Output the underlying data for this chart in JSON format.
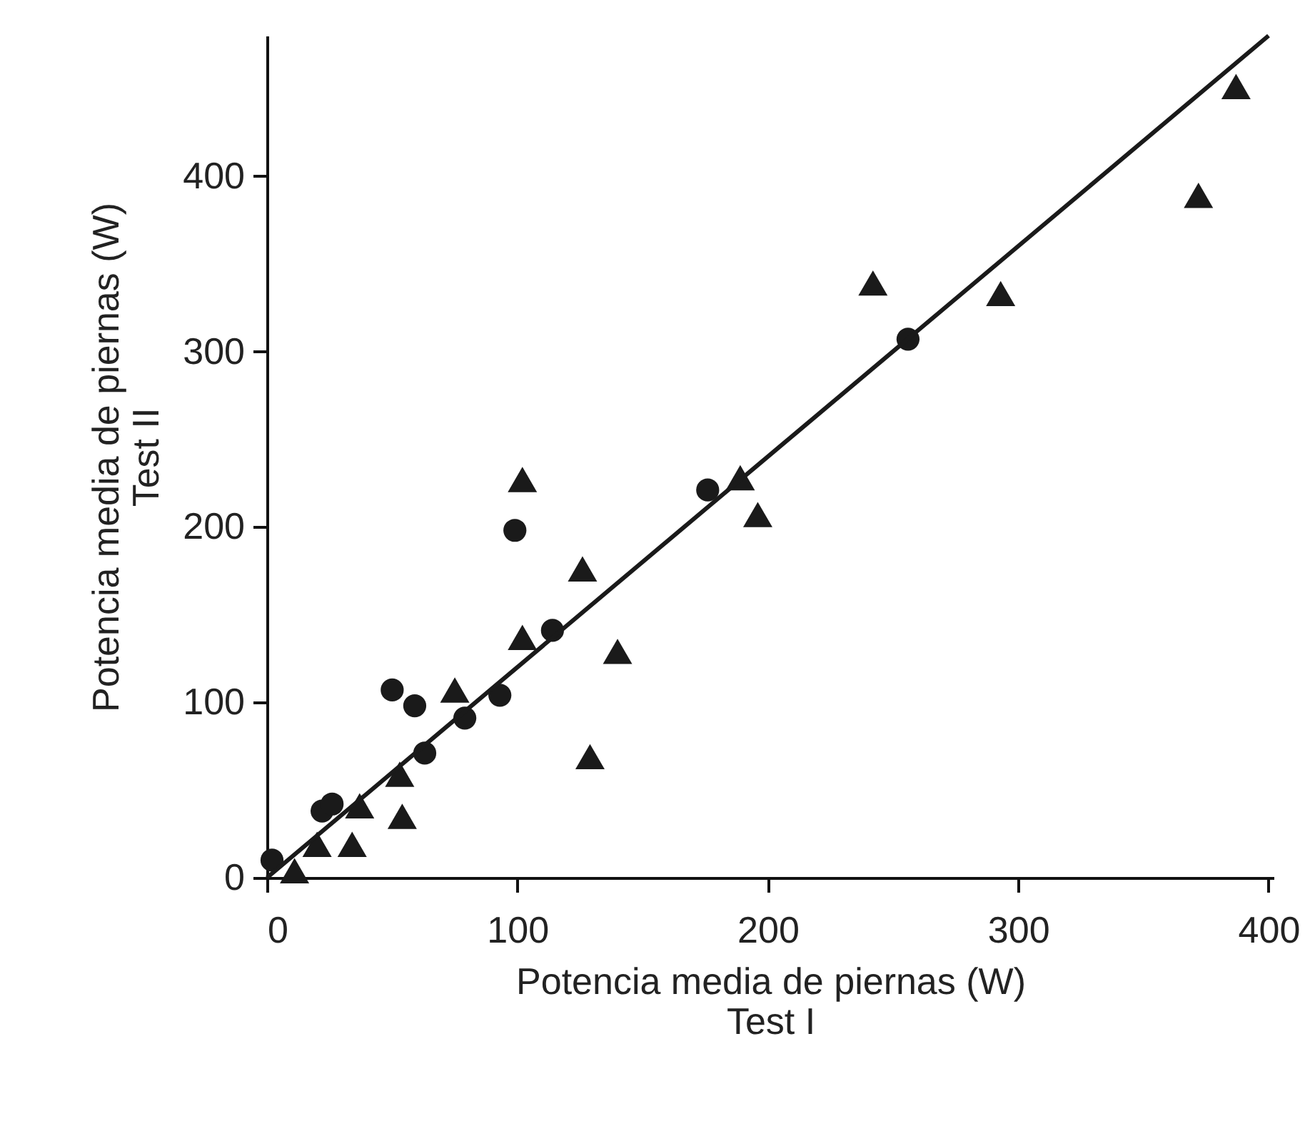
{
  "chart_data": {
    "type": "scatter",
    "xlabel": "Potencia media de piernas (W)\nTest I",
    "ylabel": "Potencia media de piernas (W)\nTest II",
    "xlim": [
      0,
      402
    ],
    "ylim": [
      0,
      480
    ],
    "xticks": [
      0,
      100,
      200,
      300,
      400
    ],
    "yticks": [
      0,
      100,
      200,
      300,
      400
    ],
    "grid": false,
    "series": [
      {
        "color": "#1a1a1a",
        "marker": "circle",
        "x": [
          2,
          22,
          26,
          50,
          59,
          63,
          79,
          93,
          99,
          114,
          176,
          256
        ],
        "values": [
          10,
          38,
          42,
          107,
          98,
          71,
          91,
          104,
          198,
          141,
          221,
          307
        ]
      },
      {
        "color": "#1a1a1a",
        "marker": "triangle",
        "x": [
          11,
          20,
          34,
          37,
          53,
          54,
          75,
          102,
          102,
          126,
          140,
          129,
          189,
          196,
          242,
          293,
          372,
          387
        ],
        "values": [
          4,
          19,
          19,
          41,
          59,
          35,
          107,
          227,
          137,
          176,
          129,
          69,
          228,
          207,
          339,
          333,
          389,
          451
        ]
      },
      {
        "type": "line",
        "color": "#1a1a1a",
        "marker": "none",
        "line_style": "solid",
        "x": [
          0,
          400
        ],
        "values": [
          0,
          480
        ]
      }
    ]
  }
}
